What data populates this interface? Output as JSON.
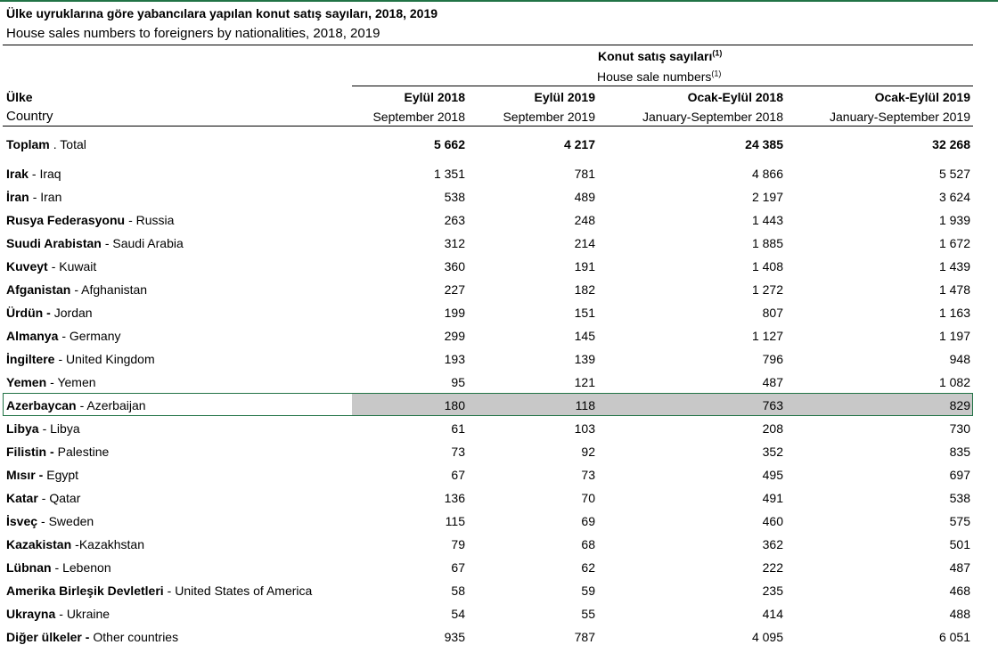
{
  "header": {
    "title": "Ülke uyruklarına göre yabancılara yapılan konut satış sayıları, 2018, 2019",
    "subtitle": "House sales numbers to foreigners by nationalities, 2018, 2019",
    "group_tr": "Konut satış sayıları",
    "group_en": "House sale numbers",
    "note": "(1)"
  },
  "table": {
    "country_tr": "Ülke",
    "country_en": "Country",
    "columns": [
      {
        "tr": "Eylül 2018",
        "en": "September 2018"
      },
      {
        "tr": "Eylül 2019",
        "en": "September 2019"
      },
      {
        "tr": "Ocak-Eylül 2018",
        "en": "January-September 2018"
      },
      {
        "tr": "Ocak-Eylül 2019",
        "en": "January-September 2019"
      }
    ],
    "rows": [
      {
        "tr": "Toplam",
        "en": ". Total",
        "values": [
          "5 662",
          "4 217",
          "24 385",
          "32 268"
        ]
      },
      {
        "tr": "Irak",
        "en": "- Iraq",
        "values": [
          "1 351",
          "781",
          "4 866",
          "5 527"
        ]
      },
      {
        "tr": "İran",
        "en": "- Iran",
        "values": [
          "538",
          "489",
          "2 197",
          "3 624"
        ]
      },
      {
        "tr": "Rusya Federasyonu",
        "en": "- Russia",
        "values": [
          "263",
          "248",
          "1 443",
          "1 939"
        ]
      },
      {
        "tr": "Suudi Arabistan",
        "en": "- Saudi Arabia",
        "values": [
          "312",
          "214",
          "1 885",
          "1 672"
        ]
      },
      {
        "tr": "Kuveyt",
        "en": "- Kuwait",
        "values": [
          "360",
          "191",
          "1 408",
          "1 439"
        ]
      },
      {
        "tr": "Afganistan",
        "en": "- Afghanistan",
        "values": [
          "227",
          "182",
          "1 272",
          "1 478"
        ]
      },
      {
        "tr": "Ürdün -",
        "en": "Jordan",
        "values": [
          "199",
          "151",
          "807",
          "1 163"
        ]
      },
      {
        "tr": "Almanya",
        "en": "- Germany",
        "values": [
          "299",
          "145",
          "1 127",
          "1 197"
        ]
      },
      {
        "tr": "İngiltere",
        "en": "- United Kingdom",
        "values": [
          "193",
          "139",
          "796",
          "948"
        ]
      },
      {
        "tr": "Yemen",
        "en": "- Yemen",
        "values": [
          "95",
          "121",
          "487",
          "1 082"
        ]
      },
      {
        "tr": "Azerbaycan",
        "en": "- Azerbaijan",
        "values": [
          "180",
          "118",
          "763",
          "829"
        ]
      },
      {
        "tr": "Libya",
        "en": "- Libya",
        "values": [
          "61",
          "103",
          "208",
          "730"
        ]
      },
      {
        "tr": "Filistin -",
        "en": "Palestine",
        "values": [
          "73",
          "92",
          "352",
          "835"
        ]
      },
      {
        "tr": "Mısır -",
        "en": "Egypt",
        "values": [
          "67",
          "73",
          "495",
          "697"
        ]
      },
      {
        "tr": "Katar",
        "en": "- Qatar",
        "values": [
          "136",
          "70",
          "491",
          "538"
        ]
      },
      {
        "tr": "İsveç",
        "en": "- Sweden",
        "values": [
          "115",
          "69",
          "460",
          "575"
        ]
      },
      {
        "tr": "Kazakistan",
        "en": "-Kazakhstan",
        "values": [
          "79",
          "68",
          "362",
          "501"
        ]
      },
      {
        "tr": "Lübnan",
        "en": "- Lebenon",
        "values": [
          "67",
          "62",
          "222",
          "487"
        ]
      },
      {
        "tr": "Amerika Birleşik Devletleri",
        "en": "- United States of America",
        "values": [
          "58",
          "59",
          "235",
          "468"
        ]
      },
      {
        "tr": "Ukrayna",
        "en": "- Ukraine",
        "values": [
          "54",
          "55",
          "414",
          "488"
        ]
      },
      {
        "tr": "Diğer ülkeler -",
        "en": "Other countries",
        "values": [
          "935",
          "787",
          "4 095",
          "6 051"
        ]
      }
    ]
  }
}
